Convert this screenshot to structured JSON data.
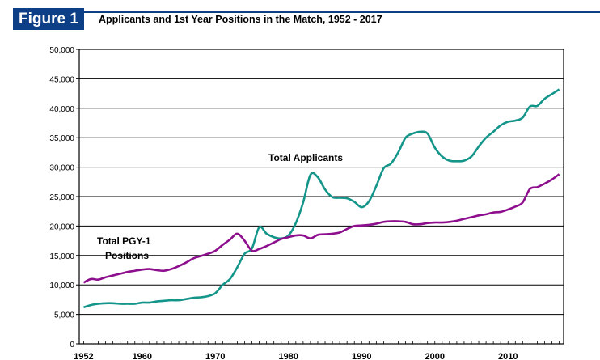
{
  "figure_label": "Figure 1",
  "colors": {
    "brand": "#0d3f86",
    "applicants": "#13958a",
    "positions": "#8e0f8e"
  },
  "chart_data": {
    "type": "line",
    "title": "Applicants and 1st Year Positions in the Match, 1952 - 2017",
    "xlabel": "",
    "ylabel": "",
    "xlim": [
      1952,
      2017
    ],
    "ylim": [
      0,
      50000
    ],
    "grid": true,
    "yticks": [
      0,
      5000,
      10000,
      15000,
      20000,
      25000,
      30000,
      35000,
      40000,
      45000,
      50000
    ],
    "ytick_labels": [
      "0",
      "5,000",
      "10,000",
      "15,000",
      "20,000",
      "25,000",
      "30,000",
      "35,000",
      "40,000",
      "45,000",
      "50,000"
    ],
    "xticks": [
      1952,
      1960,
      1970,
      1980,
      1990,
      2000,
      2010
    ],
    "xtick_labels": [
      "1952",
      "1960",
      "1970",
      "1980",
      "1990",
      "2000",
      "2010"
    ],
    "annotations": [
      {
        "text": "Total Applicants",
        "series": "Total Applicants"
      },
      {
        "text": "Total PGY-1",
        "series": "Total PGY-1 Positions"
      },
      {
        "text": "Positions",
        "series": "Total PGY-1 Positions"
      }
    ],
    "x": [
      1952,
      1953,
      1954,
      1955,
      1956,
      1957,
      1958,
      1959,
      1960,
      1961,
      1962,
      1963,
      1964,
      1965,
      1966,
      1967,
      1968,
      1969,
      1970,
      1971,
      1972,
      1973,
      1974,
      1975,
      1976,
      1977,
      1978,
      1979,
      1980,
      1981,
      1982,
      1983,
      1984,
      1985,
      1986,
      1987,
      1988,
      1989,
      1990,
      1991,
      1992,
      1993,
      1994,
      1995,
      1996,
      1997,
      1998,
      1999,
      2000,
      2001,
      2002,
      2003,
      2004,
      2005,
      2006,
      2007,
      2008,
      2009,
      2010,
      2011,
      2012,
      2013,
      2014,
      2015,
      2016,
      2017
    ],
    "series": [
      {
        "name": "Total Applicants",
        "values": [
          6200,
          6600,
          6800,
          6900,
          6900,
          6800,
          6800,
          6800,
          7000,
          7000,
          7200,
          7300,
          7400,
          7400,
          7600,
          7800,
          7900,
          8100,
          8600,
          10000,
          11000,
          13000,
          15300,
          16200,
          19800,
          18700,
          18100,
          17900,
          18400,
          20500,
          24000,
          28700,
          28300,
          26200,
          24900,
          24800,
          24700,
          24100,
          23200,
          24200,
          26800,
          29800,
          30600,
          32500,
          35000,
          35700,
          36000,
          35700,
          33300,
          31800,
          31100,
          31000,
          31100,
          31800,
          33500,
          35000,
          36000,
          37100,
          37700,
          37900,
          38400,
          40300,
          40400,
          41600,
          42400,
          43200
        ]
      },
      {
        "name": "Total PGY-1 Positions",
        "values": [
          10400,
          11000,
          10900,
          11300,
          11600,
          11900,
          12200,
          12400,
          12600,
          12700,
          12500,
          12400,
          12700,
          13200,
          13800,
          14500,
          14900,
          15300,
          15800,
          16800,
          17700,
          18700,
          17500,
          15800,
          16100,
          16600,
          17200,
          17800,
          18100,
          18400,
          18400,
          17900,
          18500,
          18600,
          18700,
          18900,
          19500,
          20000,
          20100,
          20200,
          20400,
          20700,
          20800,
          20800,
          20700,
          20300,
          20300,
          20500,
          20600,
          20600,
          20700,
          20900,
          21200,
          21500,
          21800,
          22000,
          22300,
          22400,
          22800,
          23300,
          24000,
          26300,
          26600,
          27200,
          27900,
          28800
        ]
      }
    ]
  }
}
